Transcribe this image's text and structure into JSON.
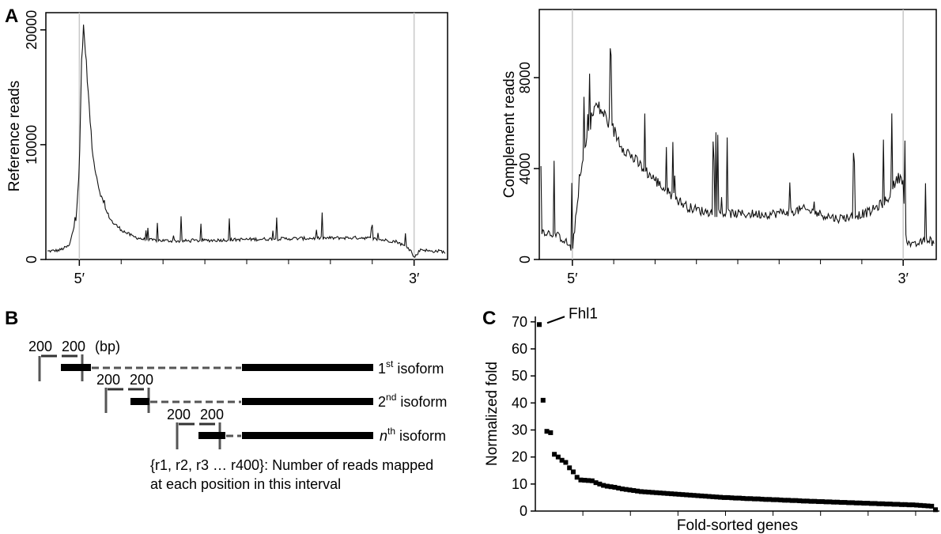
{
  "panels": {
    "a": "A",
    "b": "B",
    "c": "C"
  },
  "chart_data": [
    {
      "type": "line",
      "ylabel": "Reference reads",
      "ylim": [
        0,
        21500
      ],
      "yticks": [
        0,
        10000,
        20000
      ],
      "xlim": [
        -0.1,
        1.1
      ],
      "xticks": [
        {
          "x": 0,
          "label": "5′"
        },
        {
          "x": 1,
          "label": "3′"
        }
      ],
      "markers": [
        0,
        1
      ],
      "series": [
        {
          "x": [
            -0.1,
            -0.06,
            -0.03,
            -0.01,
            0.0,
            0.005,
            0.012,
            0.02,
            0.03,
            0.04,
            0.06,
            0.08,
            0.1,
            0.13,
            0.16,
            0.2,
            0.3,
            0.5,
            0.7,
            0.85,
            0.95,
            0.99,
            1.0,
            1.02,
            1.05,
            1.08,
            1.1
          ],
          "y": [
            700,
            800,
            1200,
            3500,
            8000,
            14500,
            20500,
            17500,
            13000,
            9000,
            6000,
            4200,
            3200,
            2500,
            2000,
            1700,
            1600,
            1750,
            1850,
            1900,
            1550,
            800,
            150,
            900,
            700,
            750,
            500
          ]
        }
      ]
    },
    {
      "type": "line",
      "ylabel": "Complement reads",
      "ylim": [
        0,
        11000
      ],
      "yticks": [
        0,
        4000,
        8000
      ],
      "xlim": [
        -0.1,
        1.1
      ],
      "xticks": [
        {
          "x": 0,
          "label": "5′"
        },
        {
          "x": 1,
          "label": "3′"
        }
      ],
      "markers": [
        0,
        1
      ],
      "series": [
        {
          "x": [
            -0.1,
            -0.08,
            -0.05,
            -0.02,
            0.0,
            0.01,
            0.03,
            0.05,
            0.07,
            0.09,
            0.12,
            0.15,
            0.2,
            0.25,
            0.3,
            0.35,
            0.4,
            0.5,
            0.6,
            0.7,
            0.8,
            0.85,
            0.9,
            0.95,
            0.98,
            0.995,
            1.0,
            1.01,
            1.03,
            1.06,
            1.08,
            1.1
          ],
          "y": [
            1300,
            1200,
            1100,
            800,
            400,
            1800,
            4200,
            5800,
            6800,
            6500,
            5800,
            5000,
            4200,
            3500,
            2800,
            2300,
            2100,
            2000,
            2000,
            2200,
            1800,
            1900,
            2100,
            2600,
            3500,
            3700,
            3300,
            800,
            600,
            800,
            900,
            500
          ]
        }
      ]
    },
    {
      "type": "scatter",
      "xlabel": "Fold-sorted genes",
      "ylabel": "Normalized fold",
      "ylim": [
        0,
        72
      ],
      "yticks": [
        0,
        10,
        20,
        30,
        40,
        50,
        60,
        70
      ],
      "annotation": {
        "label": "Fhl1",
        "index": 0
      },
      "series": [
        {
          "y": [
            69,
            41,
            29.5,
            29,
            21,
            20,
            18.8,
            18,
            16,
            14.5,
            12.5,
            11.5,
            11.4,
            11.3,
            11.2,
            10.5,
            10,
            9.5,
            9.2,
            9,
            8.8,
            8.5,
            8.2,
            8,
            7.8,
            7.6,
            7.4,
            7.2,
            7.1,
            7,
            6.9,
            6.8,
            6.7,
            6.6,
            6.5,
            6.4,
            6.3,
            6.2,
            6.1,
            6,
            5.9,
            5.8,
            5.7,
            5.6,
            5.5,
            5.4,
            5.3,
            5.2,
            5.1,
            5,
            5,
            4.9,
            4.8,
            4.8,
            4.7,
            4.6,
            4.6,
            4.5,
            4.5,
            4.4,
            4.3,
            4.3,
            4.2,
            4.2,
            4.1,
            4,
            4,
            3.9,
            3.9,
            3.8,
            3.7,
            3.7,
            3.6,
            3.6,
            3.5,
            3.5,
            3.4,
            3.4,
            3.3,
            3.3,
            3.2,
            3.2,
            3.1,
            3.1,
            3,
            3,
            2.9,
            2.9,
            2.8,
            2.8,
            2.7,
            2.7,
            2.6,
            2.6,
            2.5,
            2.5,
            2.4,
            2.4,
            2.3,
            2.3,
            2.2,
            2.1,
            2,
            1.9,
            1.8,
            0.5
          ]
        }
      ]
    }
  ],
  "diagram_b": {
    "bp_top": "200",
    "bp_top2": "200",
    "bp_unit": "(bp)",
    "isoform_labels": [
      {
        "prefix": "1",
        "sup": "st",
        "suffix": " isoform"
      },
      {
        "prefix": "2",
        "sup": "nd",
        "suffix": " isoform"
      },
      {
        "prefix": "n",
        "sup": "th",
        "suffix": " isoform"
      }
    ],
    "bp_second": [
      "200",
      "200"
    ],
    "bp_third": [
      "200",
      "200"
    ],
    "caption_line1": "{r1, r2, r3 … r400}: Number of reads mapped",
    "caption_line2": "at each position in this interval"
  }
}
